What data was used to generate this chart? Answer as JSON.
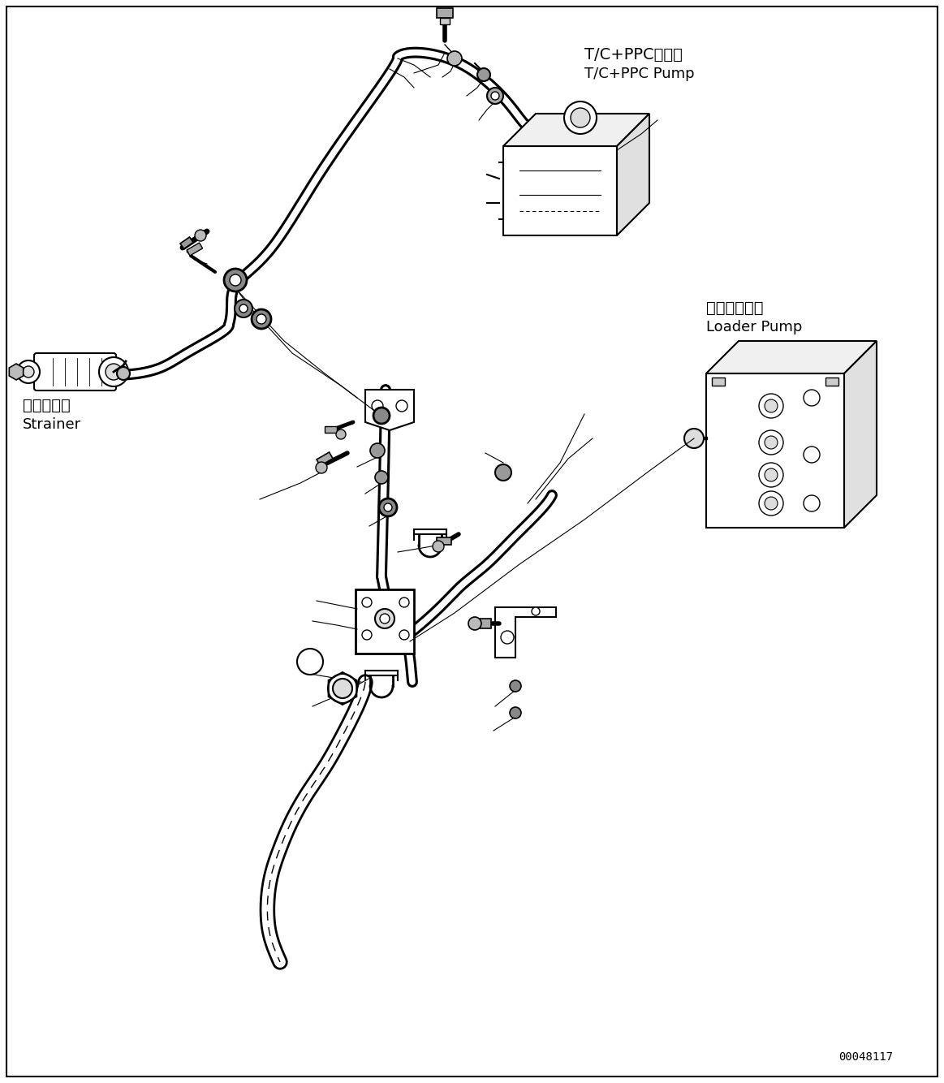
{
  "bg_color": "#ffffff",
  "line_color": "#000000",
  "text_color": "#000000",
  "fig_width": 11.63,
  "fig_height": 13.34,
  "dpi": 100,
  "part_number": "00048117",
  "labels": {
    "tc_ppc_jp": "T/C+PPCポンプ",
    "tc_ppc_en": "T/C+PPC Pump",
    "loader_jp": "ローダポンプ",
    "loader_en": "Loader Pump",
    "strainer_jp": "ストレーナ",
    "strainer_en": "Strainer"
  }
}
